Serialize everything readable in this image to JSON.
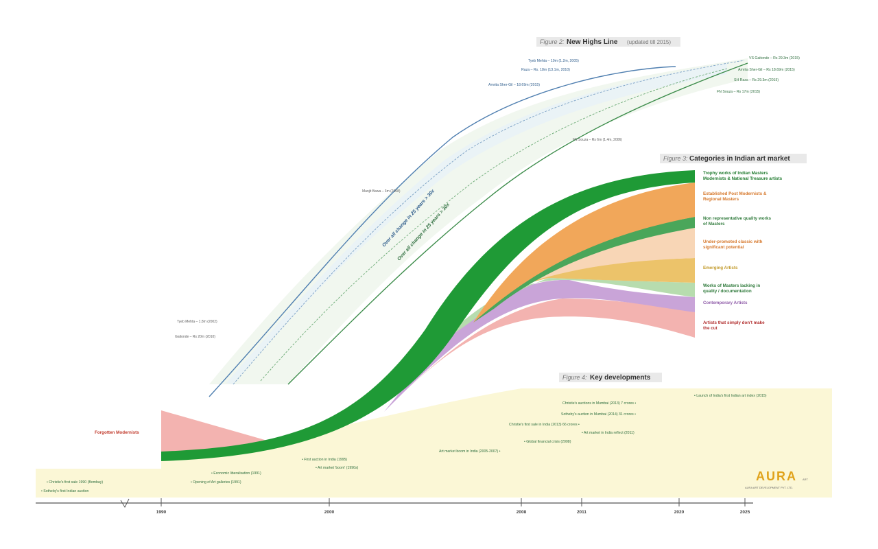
{
  "colors": {
    "dark_green": "#1f9a36",
    "orange": "#f1a75a",
    "mid_green": "#4aa65a",
    "peach": "#f8d6b6",
    "amber": "#ecc36a",
    "light_green": "#b7dcae",
    "lavender": "#c9a4d8",
    "pink": "#f3b3b0",
    "cream": "#fbf7d6",
    "line_blue": "#4f7fb0",
    "line_green": "#3c8c4a"
  },
  "figure2": {
    "number": "Figure 2:",
    "title": "New Highs Line",
    "subtitle": "(updated till 2015)",
    "band_label_upper": "Over all change in 25 years > 30x",
    "band_label_lower": "Over all change in 25 years > 30x"
  },
  "figure3": {
    "number": "Figure 3:",
    "title": "Categories in Indian art market"
  },
  "figure4": {
    "number": "Figure 4:",
    "title": "Key developments"
  },
  "forgotten_label": "Forgotten Modernists",
  "logo": {
    "text": "AURA",
    "mark": "ART",
    "tagline": "AURA ART DEVELOPMENT PVT. LTD."
  },
  "chart_data": {
    "type": "area",
    "x_ticks": [
      "1990",
      "2000",
      "2008",
      "2011",
      "2020",
      "2025"
    ],
    "categories": [
      {
        "label": "Trophy works of Indian Masters Modernists & National Treasure artists",
        "color": "#1f9a36"
      },
      {
        "label": "Established Post Modernists & Regional Masters",
        "color": "#f1a75a"
      },
      {
        "label": "Non representative quality works of Masters",
        "color": "#4aa65a"
      },
      {
        "label": "Under-promoted classic with significant potential",
        "color": "#f8d6b6"
      },
      {
        "label": "Emerging Artists",
        "color": "#ecc36a"
      },
      {
        "label": "Works of Masters lacking in quality / documentation",
        "color": "#b7dcae"
      },
      {
        "label": "Contemporary Artists",
        "color": "#c9a4d8"
      },
      {
        "label": "Artists that simply don't make the cut",
        "color": "#f3b3b0"
      }
    ],
    "series": [
      {
        "name": "Over all change in 25 years > 30x",
        "line": "upper"
      },
      {
        "name": "Over all change in 25 years > 30x",
        "line": "lower"
      }
    ]
  },
  "upper_annotations": [
    {
      "text": "Tyeb Mehta – 10m (1.2m, 2005)",
      "cls": "ann-blue"
    },
    {
      "text": "Raza – Rs. 18m (13.1m, 2010)",
      "cls": "ann-blue"
    },
    {
      "text": "Amrita Sher-Gil – 18.69m (2015)",
      "cls": "ann-blue"
    },
    {
      "text": "Manjit Bawa – 3m (2008)",
      "cls": "ann-grey"
    },
    {
      "text": "Tyeb Mehta – 1.8m (2002)",
      "cls": "ann-grey"
    },
    {
      "text": "Gaitonde – Rs 20m (2010)",
      "cls": "ann-grey"
    },
    {
      "text": "FN Souza – Rs 6m (1.4m, 2006)",
      "cls": "ann-grey"
    }
  ],
  "right_annotations": [
    {
      "text": "VS Gaitonde – Rs 29.3m (2015)",
      "cls": "ann"
    },
    {
      "text": "Amrita Sher-Gil – Rs 18.69m (2015)",
      "cls": "ann"
    },
    {
      "text": "SH Raza – Rs 29.3m (2015)",
      "cls": "ann"
    },
    {
      "text": "FN Souza – Rs 17m (2015)",
      "cls": "ann"
    }
  ],
  "developments": [
    {
      "text": "• Launch of India's first Indian art index (2015)"
    },
    {
      "text": "Christie's auctions in Mumbai (2013) 7 crores •"
    },
    {
      "text": "Sotheby's auction in Mumbai (2014) 31 crores •"
    },
    {
      "text": "Christie's first sale in India (2013) 66 crores •"
    },
    {
      "text": "• Art market in India reflect (2011)"
    },
    {
      "text": "• Global financial crisis (2008)"
    },
    {
      "text": "Art market boom in India (2005-2007) •"
    },
    {
      "text": "• First auction in India (1995)"
    },
    {
      "text": "• Art market 'boom' (1990s)"
    },
    {
      "text": "• Economic liberalisation (1991)"
    },
    {
      "text": "• Opening of Art galleries (1991)"
    },
    {
      "text": "• Christie's first sale 1990 (Bombay)"
    },
    {
      "text": "• Sotheby's first Indian auction"
    }
  ]
}
